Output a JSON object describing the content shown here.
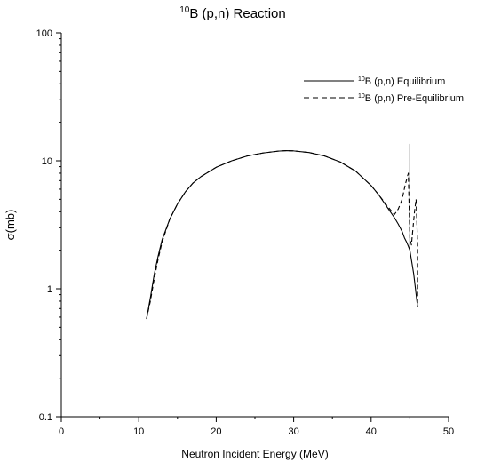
{
  "chart_data": {
    "type": "line",
    "title": {
      "sup": "10",
      "text": "B (p,n) Reaction"
    },
    "xlabel": "Neutron Incident Energy (MeV)",
    "ylabel": "σ(mb)",
    "xlim": [
      0,
      50
    ],
    "ylim": [
      0.1,
      100
    ],
    "yscale": "log",
    "xticks": [
      "0",
      "10",
      "20",
      "30",
      "40",
      "50"
    ],
    "yticks": [
      "0.1",
      "1",
      "10",
      "100"
    ],
    "grid": false,
    "legend_position": "top-right",
    "series": [
      {
        "name_sup": "10",
        "name": "B (p,n) Equilibrium",
        "style": "solid",
        "x": [
          11,
          11.5,
          12,
          12.5,
          13,
          14,
          15,
          16,
          17,
          18,
          20,
          22,
          24,
          26,
          28,
          29,
          30,
          32,
          34,
          36,
          38,
          40,
          41,
          42,
          43,
          43.5,
          44,
          44.3,
          44.6,
          44.8,
          45,
          45,
          45,
          45.5,
          46
        ],
        "y": [
          0.58,
          0.85,
          1.3,
          1.8,
          2.4,
          3.5,
          4.6,
          5.7,
          6.7,
          7.5,
          8.9,
          10.0,
          10.9,
          11.5,
          11.9,
          12.0,
          11.95,
          11.6,
          10.9,
          9.8,
          8.3,
          6.4,
          5.4,
          4.4,
          3.6,
          3.2,
          2.8,
          2.5,
          2.3,
          2.15,
          2.0,
          13.5,
          2.0,
          1.3,
          0.72
        ]
      },
      {
        "name_sup": "10",
        "name": "B (p,n) Pre-Equilibrium",
        "style": "dashed",
        "x": [
          11,
          11.5,
          12,
          12.5,
          13,
          14,
          15,
          16,
          17,
          18,
          20,
          22,
          24,
          26,
          28,
          29,
          30,
          32,
          34,
          36,
          38,
          40,
          41,
          42,
          43,
          43.5,
          44,
          44.4,
          44.8,
          45,
          45.2,
          45.6,
          45.8,
          46,
          46
        ],
        "y": [
          0.58,
          0.8,
          1.2,
          1.7,
          2.3,
          3.5,
          4.6,
          5.7,
          6.7,
          7.5,
          8.9,
          10.0,
          10.9,
          11.5,
          11.9,
          12.0,
          11.95,
          11.6,
          10.9,
          9.8,
          8.3,
          6.4,
          5.4,
          4.5,
          3.8,
          4.2,
          5.0,
          6.5,
          8.0,
          2.5,
          2.2,
          4.0,
          5.0,
          2.2,
          0.72
        ]
      }
    ]
  }
}
